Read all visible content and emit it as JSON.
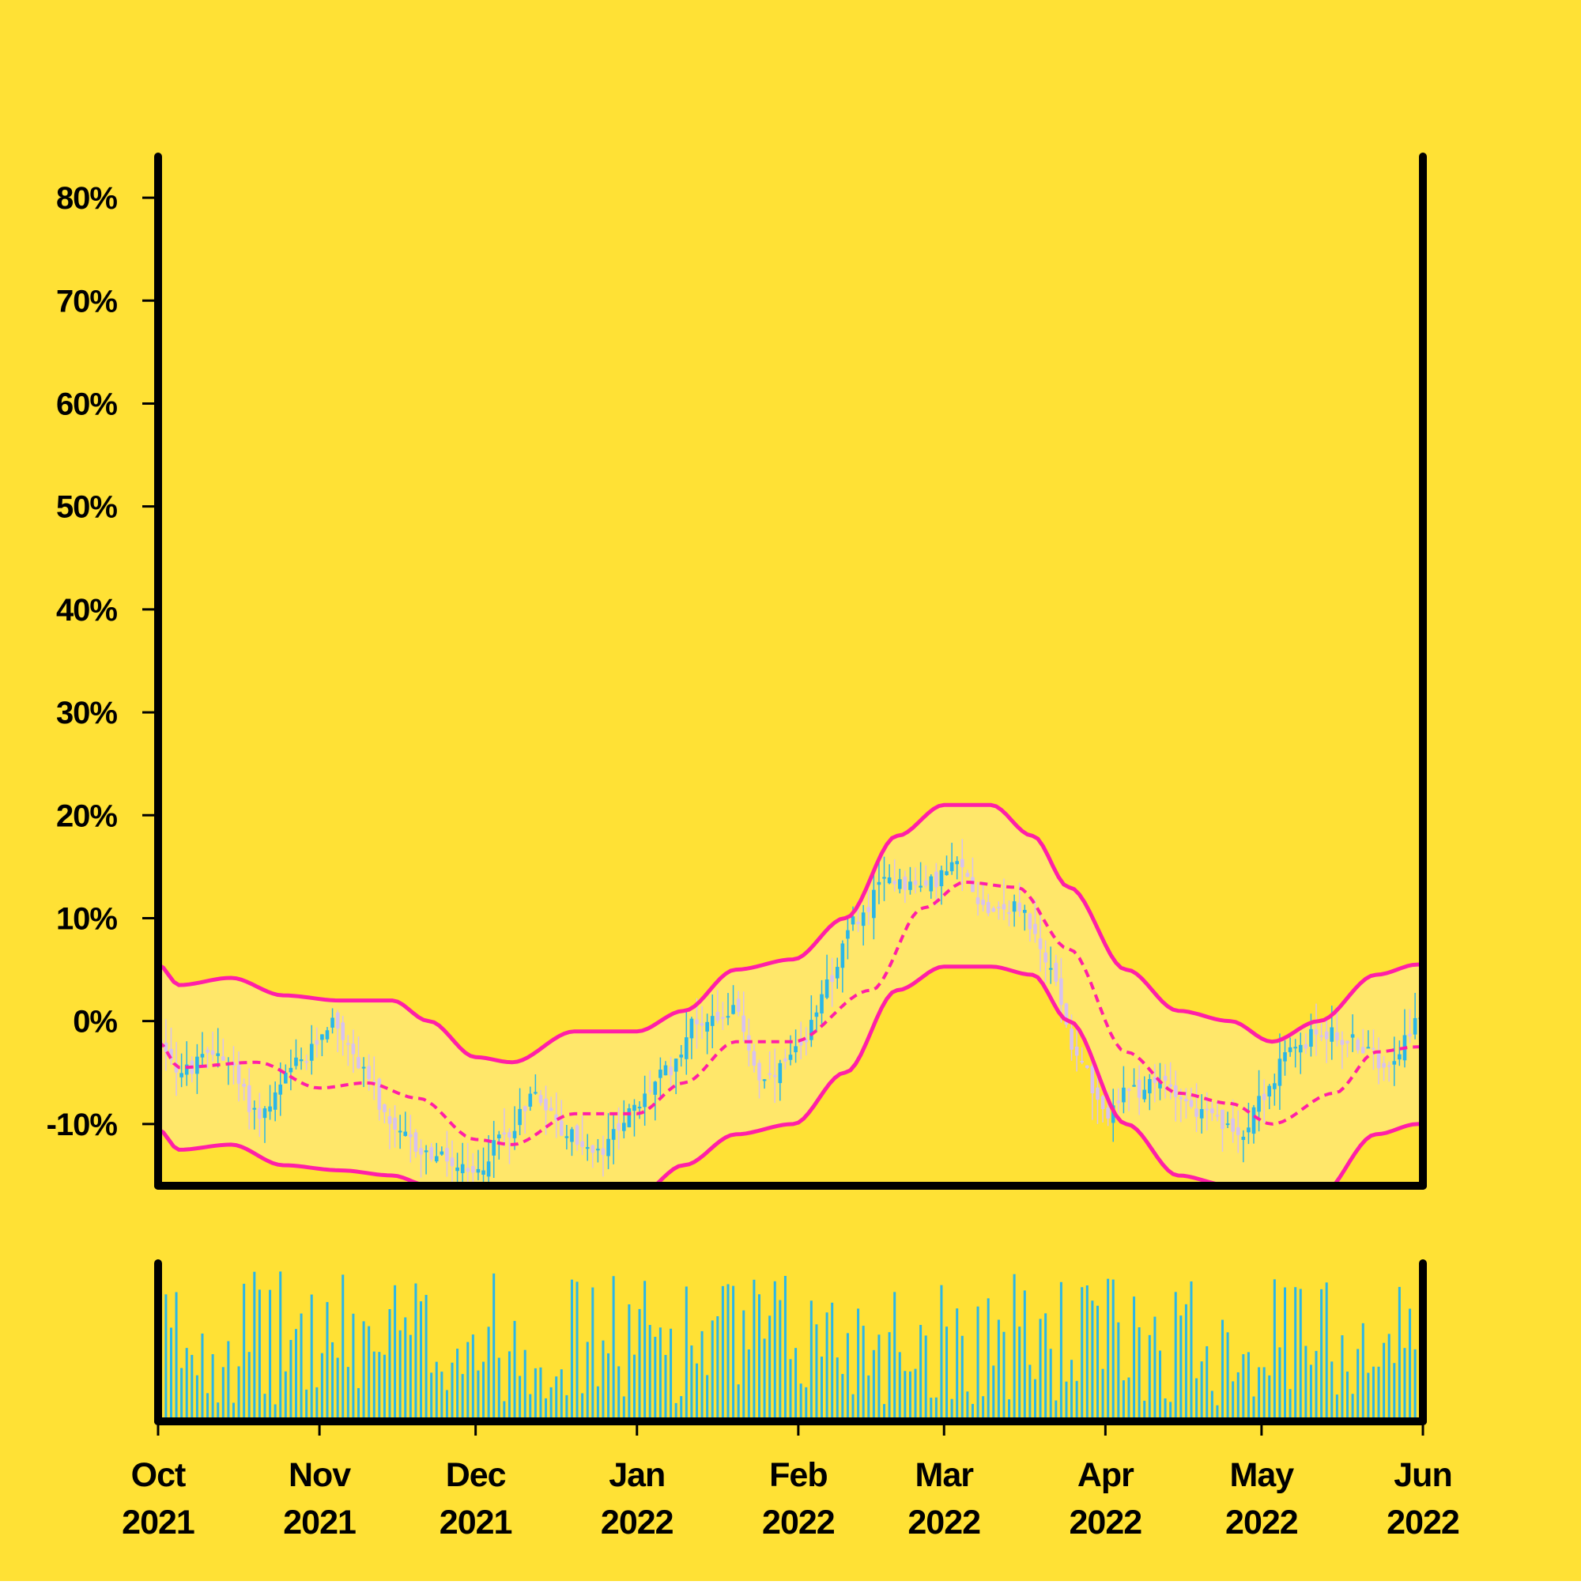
{
  "colors": {
    "background": "#FFE135",
    "band_fill": "#FFE76A",
    "band_line": "#FF1FA8",
    "candle_up": "#29B6E8",
    "candle_down": "#D7C2F0",
    "volume_bar": "#29B6E8",
    "axis": "#000000"
  },
  "chart_data": {
    "type": "candlestick",
    "x_axis": {
      "type": "date",
      "range": [
        "2021-10-01",
        "2022-06-01"
      ],
      "ticks": [
        {
          "date": "2021-10-01",
          "label": "Oct\n2021"
        },
        {
          "date": "2021-11-01",
          "label": "Nov\n2021"
        },
        {
          "date": "2021-12-01",
          "label": "Dec\n2021"
        },
        {
          "date": "2022-01-01",
          "label": "Jan\n2022"
        },
        {
          "date": "2022-02-01",
          "label": "Feb\n2022"
        },
        {
          "date": "2022-03-01",
          "label": "Mar\n2022"
        },
        {
          "date": "2022-04-01",
          "label": "Apr\n2022"
        },
        {
          "date": "2022-05-01",
          "label": "May\n2022"
        },
        {
          "date": "2022-06-01",
          "label": "Jun\n2022"
        }
      ]
    },
    "y_axis": {
      "unit": "%",
      "range": [
        -16,
        84
      ],
      "ticks": [
        -10,
        0,
        10,
        20,
        30,
        40,
        50,
        60,
        70,
        80
      ],
      "tick_labels": [
        "-10%",
        "0%",
        "10%",
        "20%",
        "30%",
        "40%",
        "50%",
        "60%",
        "70%",
        "80%"
      ]
    },
    "price_anchors": {
      "description": "approximate close level (%) at dates across the series",
      "points": [
        [
          "2021-10-01",
          -2
        ],
        [
          "2021-10-05",
          -5
        ],
        [
          "2021-10-12",
          -3
        ],
        [
          "2021-10-20",
          -9
        ],
        [
          "2021-10-28",
          -4
        ],
        [
          "2021-11-03",
          0
        ],
        [
          "2021-11-08",
          -4
        ],
        [
          "2021-11-15",
          -11
        ],
        [
          "2021-11-22",
          -13
        ],
        [
          "2021-11-30",
          -15
        ],
        [
          "2021-12-06",
          -11
        ],
        [
          "2021-12-12",
          -7
        ],
        [
          "2021-12-18",
          -11
        ],
        [
          "2021-12-24",
          -13
        ],
        [
          "2021-12-30",
          -9
        ],
        [
          "2022-01-06",
          -5
        ],
        [
          "2022-01-12",
          0
        ],
        [
          "2022-01-19",
          1
        ],
        [
          "2022-01-25",
          -6
        ],
        [
          "2022-02-01",
          -3
        ],
        [
          "2022-02-06",
          4
        ],
        [
          "2022-02-12",
          10
        ],
        [
          "2022-02-18",
          14
        ],
        [
          "2022-02-24",
          13
        ],
        [
          "2022-03-03",
          15
        ],
        [
          "2022-03-09",
          11
        ],
        [
          "2022-03-15",
          11
        ],
        [
          "2022-03-21",
          5
        ],
        [
          "2022-03-26",
          -3
        ],
        [
          "2022-03-31",
          -9
        ],
        [
          "2022-04-05",
          -7
        ],
        [
          "2022-04-12",
          -6
        ],
        [
          "2022-04-19",
          -9
        ],
        [
          "2022-04-26",
          -11
        ],
        [
          "2022-05-01",
          -7
        ],
        [
          "2022-05-06",
          -3
        ],
        [
          "2022-05-12",
          -1
        ],
        [
          "2022-05-18",
          -2
        ],
        [
          "2022-05-24",
          -4
        ],
        [
          "2022-05-31",
          0
        ]
      ]
    },
    "bollinger_bands": {
      "window": 20,
      "middle": [
        [
          "2021-10-01",
          -2
        ],
        [
          "2021-10-05",
          -4.5
        ],
        [
          "2021-10-20",
          -4
        ],
        [
          "2021-11-01",
          -6.5
        ],
        [
          "2021-11-10",
          -6
        ],
        [
          "2021-11-20",
          -7.5
        ],
        [
          "2021-12-01",
          -11.5
        ],
        [
          "2021-12-08",
          -12
        ],
        [
          "2021-12-20",
          -9
        ],
        [
          "2022-01-01",
          -9
        ],
        [
          "2022-01-10",
          -6
        ],
        [
          "2022-01-20",
          -2
        ],
        [
          "2022-01-31",
          -2
        ],
        [
          "2022-02-15",
          3
        ],
        [
          "2022-02-25",
          11
        ],
        [
          "2022-03-05",
          13.5
        ],
        [
          "2022-03-15",
          13
        ],
        [
          "2022-03-25",
          7
        ],
        [
          "2022-04-05",
          -3
        ],
        [
          "2022-04-15",
          -7
        ],
        [
          "2022-04-25",
          -8
        ],
        [
          "2022-05-03",
          -10
        ],
        [
          "2022-05-15",
          -7
        ],
        [
          "2022-05-23",
          -3
        ],
        [
          "2022-05-31",
          -2.5
        ]
      ],
      "upper": [
        [
          "2021-10-01",
          5.5
        ],
        [
          "2021-10-05",
          3.5
        ],
        [
          "2021-10-15",
          4.2
        ],
        [
          "2021-10-25",
          2.5
        ],
        [
          "2021-11-05",
          2
        ],
        [
          "2021-11-15",
          2
        ],
        [
          "2021-11-22",
          0
        ],
        [
          "2021-12-01",
          -3.5
        ],
        [
          "2021-12-08",
          -4
        ],
        [
          "2021-12-20",
          -1
        ],
        [
          "2022-01-01",
          -1
        ],
        [
          "2022-01-10",
          1
        ],
        [
          "2022-01-20",
          5
        ],
        [
          "2022-01-31",
          6
        ],
        [
          "2022-02-10",
          10
        ],
        [
          "2022-02-20",
          18
        ],
        [
          "2022-03-01",
          21
        ],
        [
          "2022-03-10",
          21
        ],
        [
          "2022-03-18",
          18
        ],
        [
          "2022-03-25",
          13
        ],
        [
          "2022-04-05",
          5
        ],
        [
          "2022-04-15",
          1
        ],
        [
          "2022-04-25",
          0
        ],
        [
          "2022-05-03",
          -2
        ],
        [
          "2022-05-12",
          0
        ],
        [
          "2022-05-23",
          4.5
        ],
        [
          "2022-05-31",
          5.5
        ]
      ],
      "lower": [
        [
          "2021-10-01",
          -10.5
        ],
        [
          "2021-10-05",
          -12.5
        ],
        [
          "2021-10-15",
          -12
        ],
        [
          "2021-10-25",
          -14
        ],
        [
          "2021-11-05",
          -14.5
        ],
        [
          "2021-11-15",
          -15
        ],
        [
          "2021-11-22",
          -16
        ],
        [
          "2021-12-01",
          -19
        ],
        [
          "2021-12-08",
          -20
        ],
        [
          "2021-12-20",
          -17
        ],
        [
          "2022-01-01",
          -17
        ],
        [
          "2022-01-10",
          -14
        ],
        [
          "2022-01-20",
          -11
        ],
        [
          "2022-01-31",
          -10
        ],
        [
          "2022-02-10",
          -5
        ],
        [
          "2022-02-20",
          3
        ],
        [
          "2022-03-01",
          5.3
        ],
        [
          "2022-03-10",
          5.3
        ],
        [
          "2022-03-18",
          4.5
        ],
        [
          "2022-03-25",
          0
        ],
        [
          "2022-04-05",
          -10
        ],
        [
          "2022-04-15",
          -15
        ],
        [
          "2022-04-25",
          -16
        ],
        [
          "2022-05-03",
          -18
        ],
        [
          "2022-05-12",
          -17
        ],
        [
          "2022-05-23",
          -11
        ],
        [
          "2022-05-31",
          -10
        ]
      ]
    },
    "volume": {
      "y_range": [
        0,
        100
      ],
      "note": "bar heights are relative (no axis labels shown)"
    },
    "grid": false,
    "legend": "none"
  }
}
